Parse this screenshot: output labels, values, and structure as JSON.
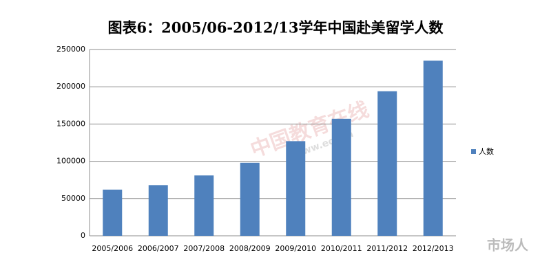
{
  "chart_data": {
    "type": "bar",
    "title": "图表6：2005/06-2012/13学年中国赴美留学人数",
    "categories": [
      "2005/2006",
      "2006/2007",
      "2007/2008",
      "2008/2009",
      "2009/2010",
      "2010/2011",
      "2011/2012",
      "2012/2013"
    ],
    "series": [
      {
        "name": "人数",
        "color": "#4f81bd",
        "values": [
          62000,
          68000,
          81000,
          98000,
          127000,
          157000,
          194000,
          235000
        ]
      }
    ],
    "ylim": [
      0,
      250000
    ],
    "yticks": [
      0,
      50000,
      100000,
      150000,
      200000,
      250000
    ],
    "grid": true,
    "legend": "right",
    "annotations": [
      "中国教育在线",
      "www.eol.cn",
      "市场人"
    ]
  }
}
